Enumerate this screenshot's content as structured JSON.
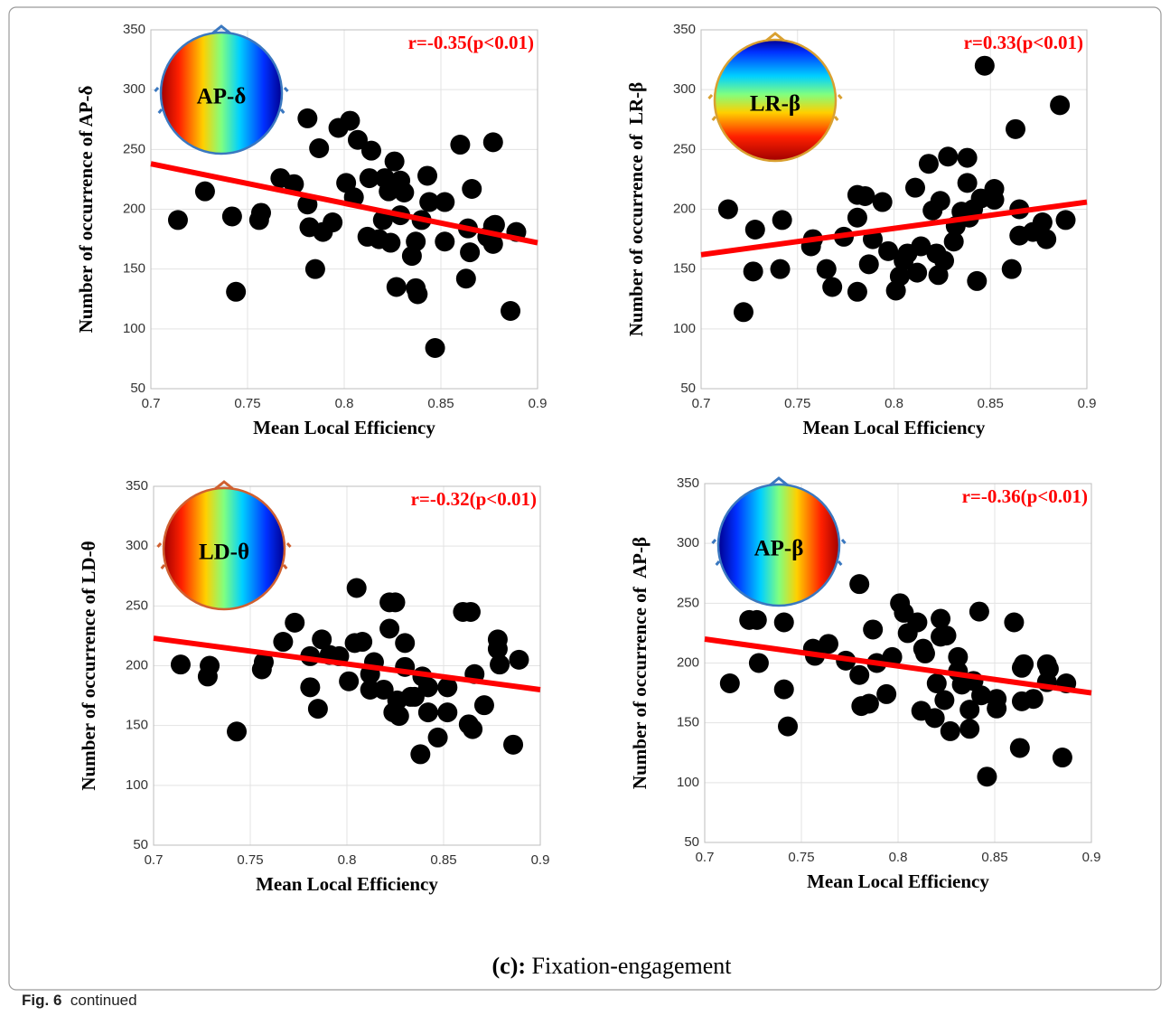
{
  "caption": {
    "label": "(c):",
    "text": "Fixation-engagement"
  },
  "figure_note": {
    "label": "Fig. 6",
    "text": "continued"
  },
  "chart_data": [
    {
      "type": "scatter",
      "annotation": "r=-0.35(p<0.01)",
      "inset_label": "AP-δ",
      "x_label": "Mean Local Efficiency",
      "y_label": "Number of occurrence of AP-δ",
      "xlim": [
        0.7,
        0.9
      ],
      "xticks": [
        0.7,
        0.75,
        0.8,
        0.85,
        0.9
      ],
      "ylim": [
        50,
        350
      ],
      "yticks": [
        50,
        100,
        150,
        200,
        250,
        300,
        350
      ],
      "grid": true,
      "color": "#000000",
      "x": [
        0.714,
        0.728,
        0.742,
        0.744,
        0.756,
        0.757,
        0.767,
        0.774,
        0.781,
        0.781,
        0.782,
        0.787,
        0.785,
        0.789,
        0.794,
        0.797,
        0.803,
        0.801,
        0.805,
        0.807,
        0.812,
        0.813,
        0.814,
        0.818,
        0.82,
        0.821,
        0.823,
        0.824,
        0.826,
        0.827,
        0.829,
        0.829,
        0.831,
        0.835,
        0.837,
        0.837,
        0.838,
        0.84,
        0.843,
        0.844,
        0.847,
        0.852,
        0.852,
        0.86,
        0.863,
        0.864,
        0.865,
        0.866,
        0.874,
        0.877,
        0.877,
        0.877,
        0.878,
        0.886,
        0.889
      ],
      "y": [
        191,
        215,
        194,
        131,
        191,
        197,
        226,
        221,
        276,
        204,
        185,
        251,
        150,
        181,
        189,
        268,
        274,
        222,
        210,
        258,
        177,
        226,
        249,
        175,
        191,
        226,
        215,
        172,
        240,
        135,
        224,
        195,
        214,
        161,
        134,
        173,
        129,
        191,
        228,
        206,
        84,
        206,
        173,
        254,
        142,
        184,
        164,
        217,
        177,
        186,
        171,
        256,
        187,
        115,
        181
      ],
      "trend_line": {
        "x": [
          0.7,
          0.9
        ],
        "y": [
          238,
          172
        ],
        "color": "#ff0000"
      }
    },
    {
      "type": "scatter",
      "annotation": "r=0.33(p<0.01)",
      "inset_label": "LR-β",
      "x_label": "Mean Local Efficiency",
      "y_label": "Number of occurrence of  LR-β",
      "xlim": [
        0.7,
        0.9
      ],
      "xticks": [
        0.7,
        0.75,
        0.8,
        0.85,
        0.9
      ],
      "ylim": [
        50,
        350
      ],
      "yticks": [
        50,
        100,
        150,
        200,
        250,
        300,
        350
      ],
      "grid": true,
      "color": "#000000",
      "x": [
        0.714,
        0.722,
        0.728,
        0.727,
        0.742,
        0.741,
        0.757,
        0.758,
        0.765,
        0.768,
        0.774,
        0.781,
        0.781,
        0.781,
        0.785,
        0.787,
        0.789,
        0.794,
        0.797,
        0.801,
        0.803,
        0.805,
        0.807,
        0.811,
        0.812,
        0.814,
        0.818,
        0.82,
        0.822,
        0.823,
        0.824,
        0.826,
        0.828,
        0.831,
        0.832,
        0.835,
        0.838,
        0.838,
        0.839,
        0.841,
        0.843,
        0.845,
        0.847,
        0.852,
        0.852,
        0.861,
        0.863,
        0.865,
        0.865,
        0.872,
        0.877,
        0.879,
        0.886,
        0.889
      ],
      "y": [
        200,
        114,
        183,
        148,
        191,
        150,
        169,
        175,
        150,
        135,
        177,
        212,
        131,
        193,
        211,
        154,
        175,
        206,
        165,
        132,
        144,
        157,
        163,
        218,
        147,
        169,
        238,
        199,
        163,
        145,
        207,
        157,
        244,
        173,
        186,
        198,
        222,
        243,
        193,
        200,
        140,
        209,
        320,
        217,
        208,
        150,
        267,
        200,
        178,
        181,
        189,
        175,
        287,
        191
      ],
      "trend_line": {
        "x": [
          0.7,
          0.9
        ],
        "y": [
          162,
          206
        ],
        "color": "#ff0000"
      }
    },
    {
      "type": "scatter",
      "annotation": "r=-0.32(p<0.01)",
      "inset_label": "LD-θ",
      "x_label": "Mean Local Efficiency",
      "y_label": "Number of occurrence of LD-θ",
      "xlim": [
        0.7,
        0.9
      ],
      "xticks": [
        0.7,
        0.75,
        0.8,
        0.85,
        0.9
      ],
      "ylim": [
        50,
        350
      ],
      "yticks": [
        50,
        100,
        150,
        200,
        250,
        300,
        350
      ],
      "grid": true,
      "color": "#000000",
      "x": [
        0.714,
        0.729,
        0.728,
        0.743,
        0.756,
        0.757,
        0.767,
        0.773,
        0.781,
        0.781,
        0.785,
        0.787,
        0.791,
        0.796,
        0.801,
        0.804,
        0.805,
        0.808,
        0.812,
        0.812,
        0.814,
        0.819,
        0.822,
        0.822,
        0.825,
        0.824,
        0.826,
        0.827,
        0.83,
        0.83,
        0.833,
        0.835,
        0.838,
        0.839,
        0.842,
        0.842,
        0.847,
        0.852,
        0.852,
        0.86,
        0.863,
        0.865,
        0.864,
        0.866,
        0.871,
        0.878,
        0.878,
        0.879,
        0.886,
        0.889
      ],
      "y": [
        201,
        200,
        191,
        145,
        197,
        203,
        220,
        236,
        208,
        182,
        164,
        222,
        209,
        208,
        187,
        219,
        265,
        220,
        193,
        180,
        203,
        180,
        231,
        253,
        253,
        161,
        171,
        158,
        219,
        199,
        174,
        174,
        126,
        191,
        182,
        161,
        140,
        182,
        161,
        245,
        151,
        147,
        245,
        193,
        167,
        222,
        214,
        201,
        134,
        205
      ],
      "trend_line": {
        "x": [
          0.7,
          0.9
        ],
        "y": [
          223,
          180
        ],
        "color": "#ff0000"
      }
    },
    {
      "type": "scatter",
      "annotation": "r=-0.36(p<0.01)",
      "inset_label": "AP-β",
      "x_label": "Mean Local Efficiency",
      "y_label": "Number of occurrence of  AP-β",
      "xlim": [
        0.7,
        0.9
      ],
      "xticks": [
        0.7,
        0.75,
        0.8,
        0.85,
        0.9
      ],
      "ylim": [
        50,
        350
      ],
      "yticks": [
        50,
        100,
        150,
        200,
        250,
        300,
        350
      ],
      "grid": true,
      "color": "#000000",
      "x": [
        0.713,
        0.723,
        0.727,
        0.728,
        0.741,
        0.741,
        0.743,
        0.756,
        0.757,
        0.764,
        0.773,
        0.78,
        0.78,
        0.781,
        0.785,
        0.787,
        0.789,
        0.794,
        0.797,
        0.801,
        0.803,
        0.805,
        0.81,
        0.812,
        0.813,
        0.814,
        0.819,
        0.82,
        0.822,
        0.822,
        0.824,
        0.825,
        0.827,
        0.831,
        0.831,
        0.833,
        0.837,
        0.837,
        0.839,
        0.842,
        0.843,
        0.846,
        0.851,
        0.851,
        0.86,
        0.863,
        0.864,
        0.864,
        0.865,
        0.87,
        0.877,
        0.877,
        0.878,
        0.885,
        0.887
      ],
      "y": [
        183,
        236,
        236,
        200,
        234,
        178,
        147,
        212,
        206,
        216,
        202,
        266,
        190,
        164,
        166,
        228,
        200,
        174,
        205,
        250,
        242,
        225,
        234,
        160,
        212,
        208,
        154,
        183,
        237,
        222,
        169,
        223,
        143,
        205,
        193,
        182,
        161,
        145,
        185,
        243,
        173,
        105,
        170,
        162,
        234,
        129,
        196,
        168,
        199,
        170,
        199,
        184,
        195,
        121,
        183
      ],
      "trend_line": {
        "x": [
          0.7,
          0.9
        ],
        "y": [
          220,
          175
        ],
        "color": "#ff0000"
      }
    }
  ]
}
